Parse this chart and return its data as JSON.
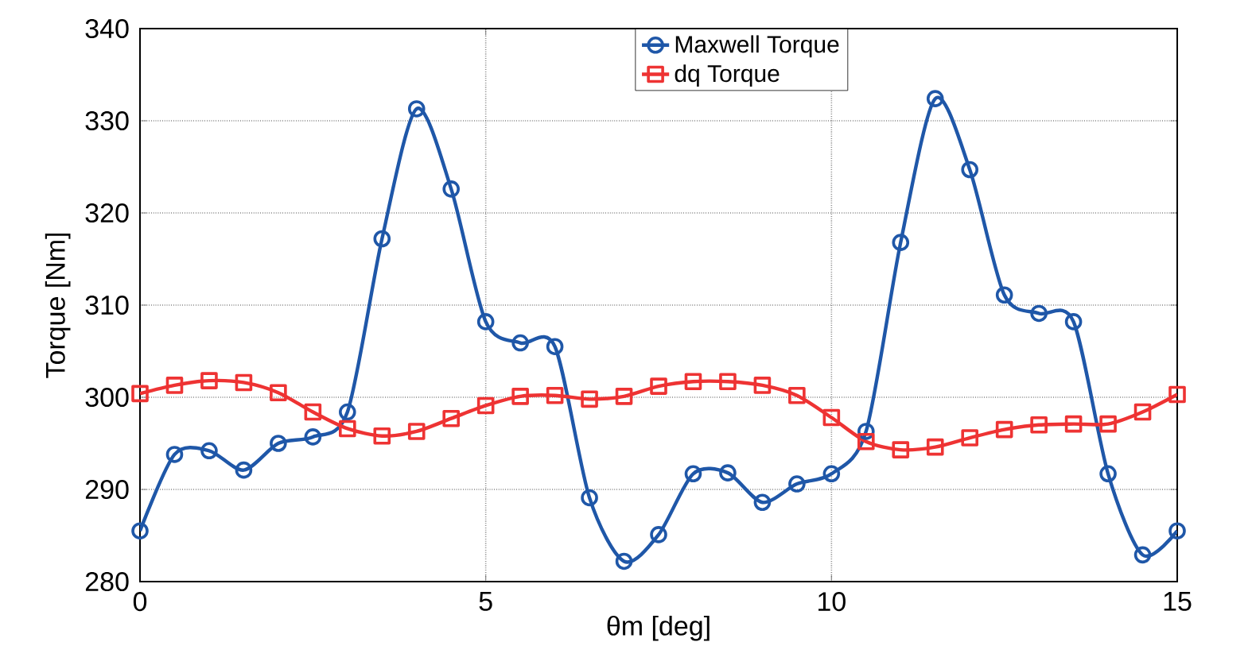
{
  "chart_data": {
    "type": "line",
    "xlabel": "θm [deg]",
    "ylabel": "Torque [Nm]",
    "x": [
      0,
      0.5,
      1,
      1.5,
      2,
      2.5,
      3,
      3.5,
      4,
      4.5,
      5,
      5.5,
      6,
      6.5,
      7,
      7.5,
      8,
      8.5,
      9,
      9.5,
      10,
      10.5,
      11,
      11.5,
      12,
      12.5,
      13,
      13.5,
      14,
      14.5,
      15
    ],
    "series": [
      {
        "name": "Maxwell Torque",
        "color": "#1f57a8",
        "marker": "circle",
        "values": [
          285.5,
          293.8,
          294.2,
          292.1,
          295.0,
          295.7,
          298.4,
          317.2,
          331.3,
          322.6,
          308.2,
          305.9,
          305.5,
          289.1,
          282.2,
          285.1,
          291.7,
          291.8,
          288.6,
          290.6,
          291.7,
          296.3,
          316.8,
          332.4,
          324.7,
          311.1,
          309.1,
          308.2,
          291.7,
          282.9,
          285.5
        ]
      },
      {
        "name": "dq Torque",
        "color": "#ee3333",
        "marker": "square",
        "values": [
          300.4,
          301.3,
          301.8,
          301.6,
          300.5,
          298.4,
          296.6,
          295.8,
          296.3,
          297.7,
          299.1,
          300.1,
          300.2,
          299.8,
          300.1,
          301.2,
          301.7,
          301.7,
          301.3,
          300.2,
          297.8,
          295.2,
          294.3,
          294.6,
          295.6,
          296.5,
          297.0,
          297.1,
          297.1,
          298.4,
          300.3
        ]
      }
    ],
    "xlim": [
      0,
      15
    ],
    "ylim": [
      280,
      340
    ],
    "xticks": [
      0,
      5,
      10,
      15
    ],
    "yticks": [
      280,
      290,
      300,
      310,
      320,
      330,
      340
    ],
    "grid": true,
    "legend": "top",
    "line_style": "solid"
  }
}
